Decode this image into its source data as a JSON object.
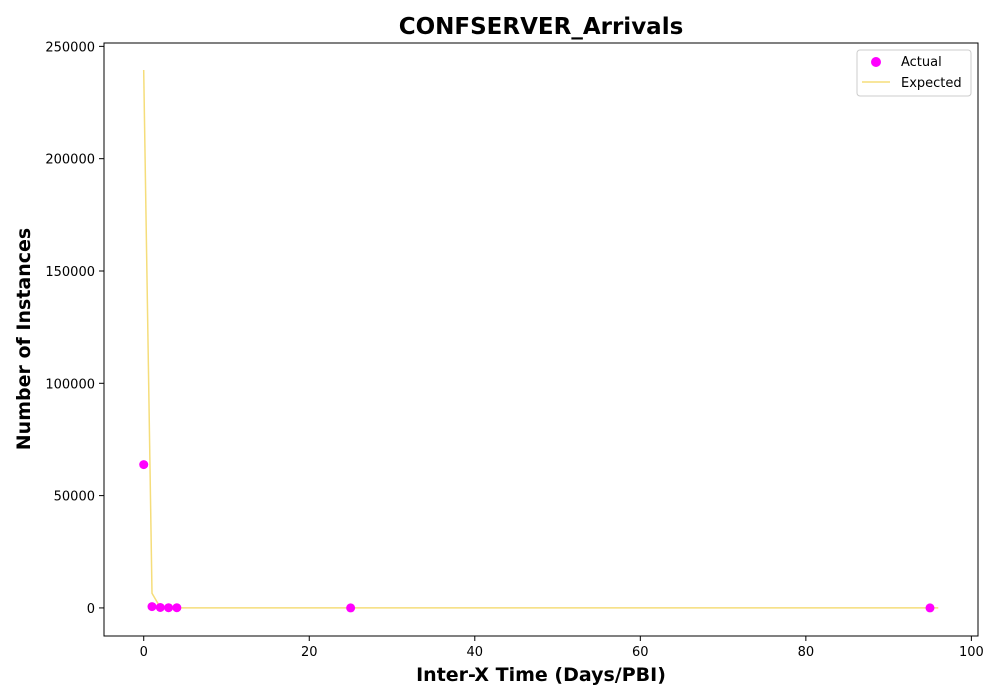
{
  "chart_data": {
    "type": "scatter",
    "title": "CONFSERVER_Arrivals",
    "xlabel": "Inter-X Time (Days/PBI)",
    "ylabel": "Number of Instances",
    "xlim": [
      -4.8,
      100.8
    ],
    "ylim": [
      -12500,
      251500
    ],
    "xticks": [
      0,
      20,
      40,
      60,
      80,
      100
    ],
    "yticks": [
      0,
      50000,
      100000,
      150000,
      200000,
      250000
    ],
    "legend": {
      "position": "top-right"
    },
    "series": [
      {
        "name": "Actual",
        "kind": "scatter",
        "color": "#ff00ff",
        "points": [
          {
            "x": 0,
            "y": 63800
          },
          {
            "x": 1,
            "y": 600
          },
          {
            "x": 2,
            "y": 200
          },
          {
            "x": 3,
            "y": 100
          },
          {
            "x": 4,
            "y": 80
          },
          {
            "x": 25,
            "y": 10
          },
          {
            "x": 95,
            "y": 5
          }
        ]
      },
      {
        "name": "Expected",
        "kind": "line",
        "color": "#f5dd7a",
        "points": [
          {
            "x": 0,
            "y": 239500
          },
          {
            "x": 1,
            "y": 6500
          },
          {
            "x": 2,
            "y": 180
          },
          {
            "x": 3,
            "y": 5
          },
          {
            "x": 4,
            "y": 0
          },
          {
            "x": 10,
            "y": 0
          },
          {
            "x": 25,
            "y": 0
          },
          {
            "x": 50,
            "y": 0
          },
          {
            "x": 75,
            "y": 0
          },
          {
            "x": 96,
            "y": 0
          }
        ]
      }
    ]
  }
}
